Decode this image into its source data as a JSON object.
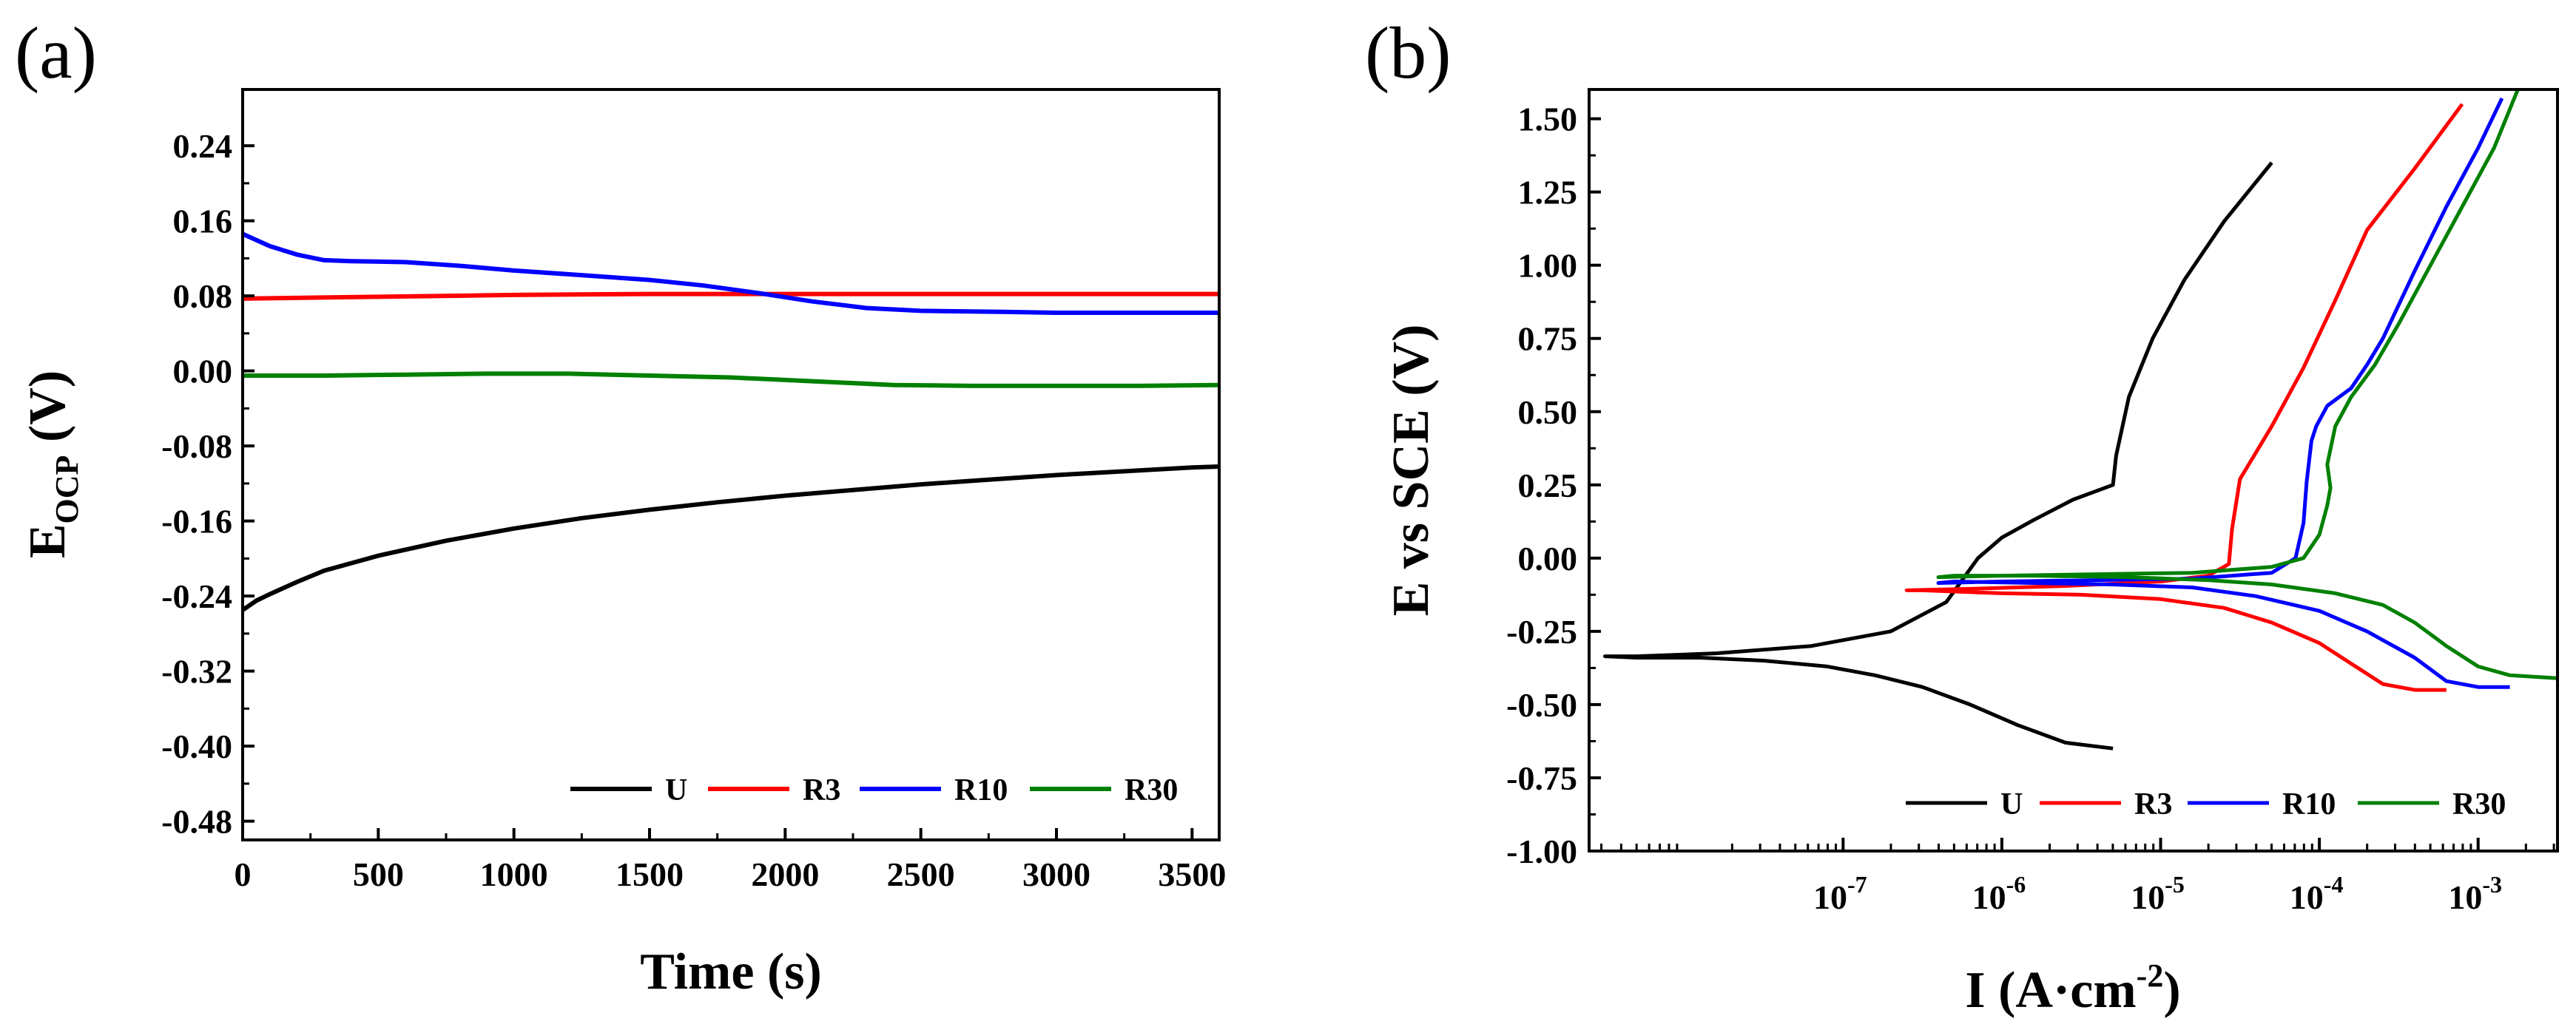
{
  "chart_data": [
    {
      "type": "line",
      "panel_label": "(a)",
      "xlabel": "Time (s)",
      "ylabel_main": "E",
      "ylabel_sub": "OCP",
      "ylabel_unit": " (V)",
      "xlim": [
        0,
        3600
      ],
      "ylim": [
        -0.5,
        0.3
      ],
      "xticks": [
        0,
        500,
        1000,
        1500,
        2000,
        2500,
        3000,
        3500
      ],
      "xtick_labels": [
        "0",
        "500",
        "1000",
        "1500",
        "2000",
        "2500",
        "3000",
        "3500"
      ],
      "yticks": [
        -0.48,
        -0.4,
        -0.32,
        -0.24,
        -0.16,
        -0.08,
        0.0,
        0.08,
        0.16,
        0.24
      ],
      "ytick_labels": [
        "-0.48",
        "-0.40",
        "-0.32",
        "-0.24",
        "-0.16",
        "-0.08",
        "0.00",
        "0.08",
        "0.16",
        "0.24"
      ],
      "legend": [
        "U",
        "R3",
        "R10",
        "R30"
      ],
      "legend_position": "bottom-right",
      "series": [
        {
          "name": "U",
          "color": "#000000",
          "x": [
            0,
            50,
            100,
            200,
            300,
            500,
            750,
            1000,
            1250,
            1500,
            1750,
            2000,
            2250,
            2500,
            2750,
            3000,
            3250,
            3500,
            3600
          ],
          "y": [
            -0.255,
            -0.245,
            -0.238,
            -0.225,
            -0.213,
            -0.197,
            -0.181,
            -0.168,
            -0.157,
            -0.148,
            -0.14,
            -0.133,
            -0.127,
            -0.121,
            -0.116,
            -0.111,
            -0.107,
            -0.103,
            -0.102
          ]
        },
        {
          "name": "R3",
          "color": "#ff0000",
          "x": [
            0,
            500,
            1000,
            1500,
            2000,
            2500,
            3000,
            3600
          ],
          "y": [
            0.077,
            0.079,
            0.081,
            0.082,
            0.082,
            0.082,
            0.082,
            0.082
          ]
        },
        {
          "name": "R10",
          "color": "#0000ff",
          "x": [
            0,
            100,
            200,
            300,
            400,
            600,
            800,
            1000,
            1200,
            1500,
            1700,
            1900,
            2100,
            2300,
            2500,
            2800,
            3000,
            3300,
            3600
          ],
          "y": [
            0.146,
            0.133,
            0.124,
            0.118,
            0.117,
            0.116,
            0.112,
            0.107,
            0.103,
            0.097,
            0.091,
            0.083,
            0.074,
            0.067,
            0.064,
            0.063,
            0.062,
            0.062,
            0.062
          ]
        },
        {
          "name": "R30",
          "color": "#008000",
          "x": [
            0,
            300,
            600,
            900,
            1200,
            1500,
            1800,
            2100,
            2400,
            2700,
            3000,
            3300,
            3600
          ],
          "y": [
            -0.005,
            -0.005,
            -0.004,
            -0.003,
            -0.003,
            -0.005,
            -0.007,
            -0.011,
            -0.015,
            -0.016,
            -0.016,
            -0.016,
            -0.015
          ]
        }
      ]
    },
    {
      "type": "line",
      "panel_label": "(b)",
      "xlabel_main": "I (A·cm",
      "xlabel_sup": "-2",
      "xlabel_end": ")",
      "ylabel": "E vs SCE (V)",
      "x_scale": "log",
      "xlim_log10": [
        -8.6,
        -2.5
      ],
      "ylim": [
        -1.0,
        1.6
      ],
      "xtick_exponents": [
        "-7",
        "-6",
        "-5",
        "-4",
        "-3"
      ],
      "xtick_positions_log10": [
        -7,
        -6,
        -5,
        -4,
        -3
      ],
      "yticks": [
        -1.0,
        -0.75,
        -0.5,
        -0.25,
        0.0,
        0.25,
        0.5,
        0.75,
        1.0,
        1.25,
        1.5
      ],
      "ytick_labels": [
        "-1.00",
        "-0.75",
        "-0.50",
        "-0.25",
        "0.00",
        "0.25",
        "0.50",
        "0.75",
        "1.00",
        "1.25",
        "1.50"
      ],
      "legend": [
        "U",
        "R3",
        "R10",
        "R30"
      ],
      "legend_position": "bottom-right",
      "series": [
        {
          "name": "U",
          "color": "#000000",
          "log_i": [
            -5.3,
            -5.6,
            -5.9,
            -6.2,
            -6.5,
            -6.8,
            -7.1,
            -7.5,
            -7.9,
            -8.3,
            -8.5,
            -8.3,
            -7.8,
            -7.2,
            -6.7,
            -6.35,
            -6.15,
            -6.0,
            -5.8,
            -5.55,
            -5.3,
            -5.28,
            -5.2,
            -5.05,
            -4.85,
            -4.6,
            -4.3
          ],
          "e": [
            -0.65,
            -0.63,
            -0.57,
            -0.5,
            -0.44,
            -0.4,
            -0.37,
            -0.35,
            -0.34,
            -0.34,
            -0.335,
            -0.335,
            -0.325,
            -0.3,
            -0.25,
            -0.15,
            0.0,
            0.07,
            0.13,
            0.2,
            0.25,
            0.35,
            0.55,
            0.75,
            0.95,
            1.15,
            1.35
          ]
        },
        {
          "name": "R3",
          "color": "#ff0000",
          "log_i": [
            -3.2,
            -3.4,
            -3.6,
            -3.8,
            -4.0,
            -4.3,
            -4.6,
            -5.0,
            -5.5,
            -6.0,
            -6.5,
            -6.6,
            -6.2,
            -5.6,
            -5.0,
            -4.7,
            -4.57,
            -4.55,
            -4.5,
            -4.3,
            -4.1,
            -3.9,
            -3.7,
            -3.4,
            -3.1
          ],
          "e": [
            -0.45,
            -0.45,
            -0.43,
            -0.36,
            -0.29,
            -0.22,
            -0.17,
            -0.14,
            -0.125,
            -0.12,
            -0.11,
            -0.11,
            -0.105,
            -0.095,
            -0.08,
            -0.06,
            -0.02,
            0.1,
            0.27,
            0.45,
            0.65,
            0.88,
            1.12,
            1.33,
            1.55
          ]
        },
        {
          "name": "R10",
          "color": "#0000ff",
          "log_i": [
            -2.8,
            -3.0,
            -3.2,
            -3.4,
            -3.7,
            -4.0,
            -4.4,
            -4.8,
            -5.3,
            -5.8,
            -6.3,
            -6.4,
            -6.0,
            -5.4,
            -4.8,
            -4.3,
            -4.15,
            -4.1,
            -4.08,
            -4.05,
            -4.02,
            -3.95,
            -3.8,
            -3.7,
            -3.6,
            -3.4,
            -3.2,
            -3.0,
            -2.85
          ],
          "e": [
            -0.44,
            -0.44,
            -0.42,
            -0.34,
            -0.25,
            -0.18,
            -0.13,
            -0.1,
            -0.09,
            -0.085,
            -0.08,
            -0.085,
            -0.08,
            -0.075,
            -0.07,
            -0.05,
            0.0,
            0.12,
            0.26,
            0.4,
            0.45,
            0.52,
            0.58,
            0.66,
            0.75,
            0.98,
            1.2,
            1.4,
            1.57
          ]
        },
        {
          "name": "R30",
          "color": "#008000",
          "log_i": [
            -2.5,
            -2.8,
            -3.0,
            -3.2,
            -3.4,
            -3.6,
            -3.9,
            -4.3,
            -4.7,
            -5.2,
            -5.8,
            -6.3,
            -6.4,
            -6.0,
            -5.4,
            -4.8,
            -4.3,
            -4.1,
            -4.0,
            -3.95,
            -3.93,
            -3.95,
            -3.9,
            -3.8,
            -3.65,
            -3.5,
            -3.3,
            -3.1,
            -2.9,
            -2.75
          ],
          "e": [
            -0.41,
            -0.4,
            -0.37,
            -0.3,
            -0.22,
            -0.16,
            -0.12,
            -0.09,
            -0.075,
            -0.065,
            -0.06,
            -0.06,
            -0.065,
            -0.06,
            -0.055,
            -0.05,
            -0.03,
            0.0,
            0.08,
            0.18,
            0.24,
            0.32,
            0.45,
            0.55,
            0.66,
            0.8,
            1.0,
            1.2,
            1.4,
            1.6
          ]
        }
      ]
    }
  ]
}
